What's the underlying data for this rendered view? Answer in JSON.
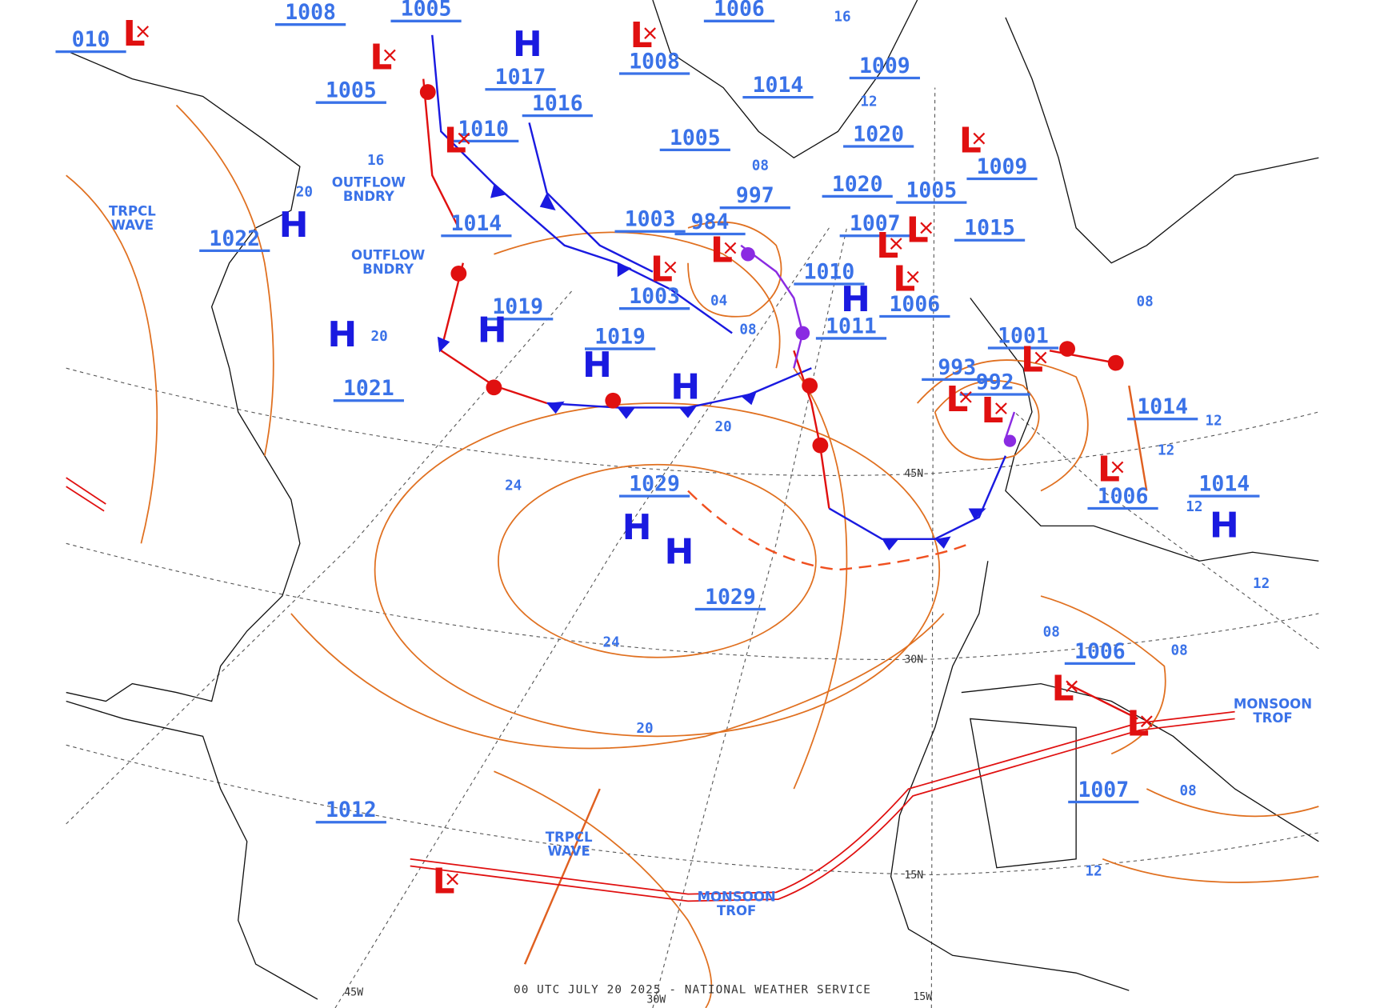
{
  "map": {
    "footer": "00 UTC JULY 20 2025 - NATIONAL WEATHER SERVICE",
    "pressure_labels": [
      "1008",
      "1005",
      "010",
      "1017",
      "1008",
      "1006",
      "1009",
      "1005",
      "1014",
      "1016",
      "1010",
      "1005",
      "1020",
      "1009",
      "1020",
      "1005",
      "997",
      "1003",
      "984",
      "1014",
      "1007",
      "1015",
      "1022",
      "1010",
      "1003",
      "1006",
      "1019",
      "1011",
      "1001",
      "1019",
      "993",
      "992",
      "1021",
      "1014",
      "1029",
      "1014",
      "1006",
      "1029",
      "1006",
      "1007",
      "1012"
    ],
    "highs": [
      "H",
      "H",
      "H",
      "H",
      "H",
      "H",
      "H",
      "H",
      "H",
      "H"
    ],
    "lows": [
      "L",
      "L",
      "L",
      "L",
      "L",
      "L",
      "L",
      "L",
      "L",
      "L",
      "L",
      "L",
      "L",
      "L",
      "L",
      "L",
      "L"
    ],
    "features": [
      {
        "lines": [
          "OUTFLOW",
          "BNDRY"
        ]
      },
      {
        "lines": [
          "OUTFLOW",
          "BNDRY"
        ]
      },
      {
        "lines": [
          "TRPCL",
          "WAVE"
        ]
      },
      {
        "lines": [
          "TRPCL",
          "WAVE"
        ]
      },
      {
        "lines": [
          "MONSOON",
          "TROF"
        ]
      },
      {
        "lines": [
          "MONSOON",
          "TROF"
        ]
      }
    ],
    "isobar_labels": [
      "20",
      "16",
      "20",
      "20",
      "24",
      "24",
      "20",
      "08",
      "04",
      "12",
      "12",
      "12",
      "12",
      "08",
      "08",
      "08",
      "12",
      "08",
      "12",
      "16",
      "08"
    ],
    "grid_labels": [
      "45N",
      "30N",
      "15N",
      "45W",
      "30W",
      "15W"
    ]
  }
}
